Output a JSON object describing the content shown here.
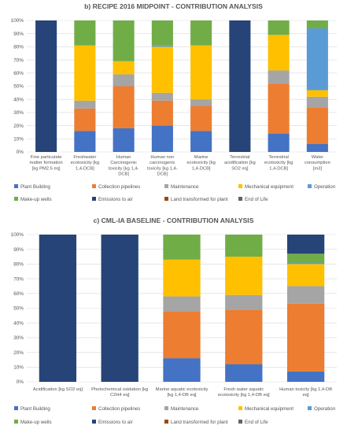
{
  "chart_data": [
    {
      "type": "bar",
      "stacked": true,
      "title": "b) RECIPE 2016 MIDPOINT - CONTRIBUTION ANALYSIS",
      "ylim": [
        0,
        100
      ],
      "yticks": [
        "0%",
        "10%",
        "20%",
        "30%",
        "40%",
        "50%",
        "60%",
        "70%",
        "80%",
        "90%",
        "100%"
      ],
      "categories": [
        [
          "Fine particulate",
          "matter formation",
          "[kg PM2.5 eq]"
        ],
        [
          "Freshwater",
          "ecotoxicity [kg",
          "1,4-DCB]"
        ],
        [
          "Human",
          "Carcinogenic",
          "toxicity [kg 1,4-",
          "DCB]"
        ],
        [
          "Human non",
          "carcinogenic",
          "toxicity [kg 1,4-",
          "DCB]"
        ],
        [
          "Marine",
          "ecotoxicity [kg",
          "1,4-DCB]"
        ],
        [
          "Terrestrial",
          "acidification [kg",
          "SO2 eq]"
        ],
        [
          "Terrestrial",
          "ecotoxicity [kg",
          "1,4-DCB]"
        ],
        [
          "Water",
          "consumption",
          "[m3]"
        ]
      ],
      "series": [
        {
          "name": "Plant Building",
          "color": "#4472c4",
          "values": [
            0,
            16,
            18,
            20,
            16,
            0,
            14,
            6
          ]
        },
        {
          "name": "Collection pipelines",
          "color": "#ed7d31",
          "values": [
            0,
            17,
            32,
            19,
            19,
            0,
            38,
            28
          ]
        },
        {
          "name": "Maintenance",
          "color": "#a5a5a5",
          "values": [
            0,
            6,
            9,
            6,
            5,
            0,
            10,
            8
          ]
        },
        {
          "name": "Mechanical equipment",
          "color": "#ffc000",
          "values": [
            0,
            42,
            10,
            35,
            41,
            0,
            27,
            5
          ]
        },
        {
          "name": "Operation",
          "color": "#5b9bd5",
          "values": [
            0,
            0,
            0,
            1,
            0,
            0,
            0,
            47
          ]
        },
        {
          "name": "Make-up wells",
          "color": "#70ad47",
          "values": [
            0,
            19,
            31,
            19,
            19,
            0,
            11,
            6
          ]
        },
        {
          "name": "Emissions to air",
          "color": "#264478",
          "values": [
            100,
            0,
            0,
            0,
            0,
            100,
            0,
            0
          ]
        },
        {
          "name": "Land transformed for plant",
          "color": "#9e480e",
          "values": [
            0,
            0,
            0,
            0,
            0,
            0,
            0,
            0
          ]
        },
        {
          "name": "End of Life",
          "color": "#636363",
          "values": [
            0,
            0,
            0,
            0,
            0,
            0,
            0,
            0
          ]
        }
      ],
      "legend": "bottom"
    },
    {
      "type": "bar",
      "stacked": true,
      "title": "c) CML-IA BASELINE - CONTRIBUTION ANALYSIS",
      "ylim": [
        0,
        100
      ],
      "yticks": [
        "0%",
        "10%",
        "20%",
        "30%",
        "40%",
        "50%",
        "60%",
        "70%",
        "80%",
        "90%",
        "100%"
      ],
      "categories": [
        [
          "Acidification [kg SO2 eq]"
        ],
        [
          "Photochemical oxidation [kg",
          "C2H4 eq]"
        ],
        [
          "Marine aquatic ecotoxicity",
          "[kg 1,4-DB eq]"
        ],
        [
          "Fresh water aquatic",
          "ecotoxicity [kg 1,4-DB eq]"
        ],
        [
          "Human toxicity [kg 1,4-DB",
          "eq]"
        ]
      ],
      "series": [
        {
          "name": "Plant Building",
          "color": "#4472c4",
          "values": [
            0,
            0,
            16,
            12,
            7
          ]
        },
        {
          "name": "Collection pipelines",
          "color": "#ed7d31",
          "values": [
            0,
            0,
            32,
            37,
            46
          ]
        },
        {
          "name": "Maintenance",
          "color": "#a5a5a5",
          "values": [
            0,
            0,
            10,
            10,
            12
          ]
        },
        {
          "name": "Mechanical equipment",
          "color": "#ffc000",
          "values": [
            0,
            0,
            25,
            26,
            15
          ]
        },
        {
          "name": "Operation",
          "color": "#5b9bd5",
          "values": [
            0,
            0,
            0,
            0,
            1
          ]
        },
        {
          "name": "Make-up wells",
          "color": "#70ad47",
          "values": [
            0,
            0,
            17,
            15,
            6
          ]
        },
        {
          "name": "Emissions to air",
          "color": "#264478",
          "values": [
            100,
            100,
            0,
            0,
            13
          ]
        },
        {
          "name": "Land transformed for plant",
          "color": "#9e480e",
          "values": [
            0,
            0,
            0,
            0,
            0
          ]
        },
        {
          "name": "End of Life",
          "color": "#636363",
          "values": [
            0,
            0,
            0,
            0,
            0
          ]
        }
      ],
      "legend": "bottom"
    }
  ]
}
